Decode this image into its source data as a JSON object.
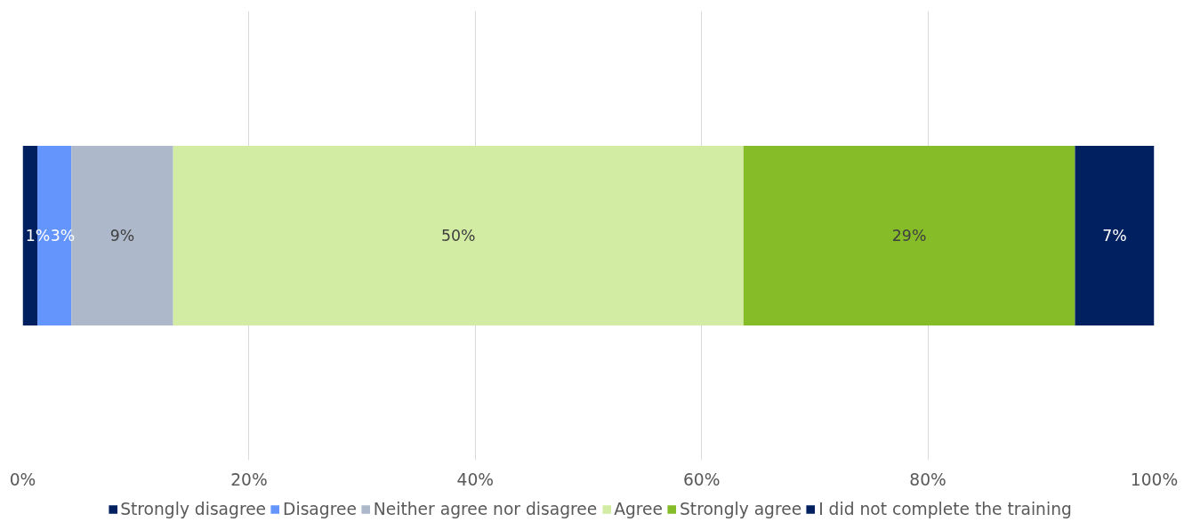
{
  "chart_data": {
    "type": "bar",
    "orientation": "horizontal",
    "stacked": true,
    "categories": [
      null
    ],
    "series": [
      {
        "name": "Strongly disagree",
        "color": "#002060",
        "values": [
          1.3
        ],
        "value_labels": [
          "1%"
        ]
      },
      {
        "name": "Disagree",
        "color": "#6495fc",
        "values": [
          3.0
        ],
        "value_labels": [
          "3%"
        ]
      },
      {
        "name": "Neither agree nor disagree",
        "color": "#adb9ca",
        "values": [
          9.0
        ],
        "value_labels": [
          "9%"
        ]
      },
      {
        "name": "Agree",
        "color": "#d3eca4",
        "values": [
          50.4
        ],
        "value_labels": [
          "50%"
        ]
      },
      {
        "name": "Strongly agree",
        "color": "#86bc28",
        "values": [
          29.3
        ],
        "value_labels": [
          "29%"
        ]
      },
      {
        "name": "I did not complete the training",
        "color": "#002060",
        "values": [
          7.0
        ],
        "value_labels": [
          "7%"
        ]
      }
    ],
    "xlim": [
      0,
      100
    ],
    "xticks": [
      {
        "value": 0,
        "label": "0%"
      },
      {
        "value": 20,
        "label": "20%"
      },
      {
        "value": 40,
        "label": "40%"
      },
      {
        "value": 60,
        "label": "60%"
      },
      {
        "value": 80,
        "label": "80%"
      },
      {
        "value": 100,
        "label": "100%"
      }
    ],
    "grid": "x",
    "legend": "bottom"
  }
}
